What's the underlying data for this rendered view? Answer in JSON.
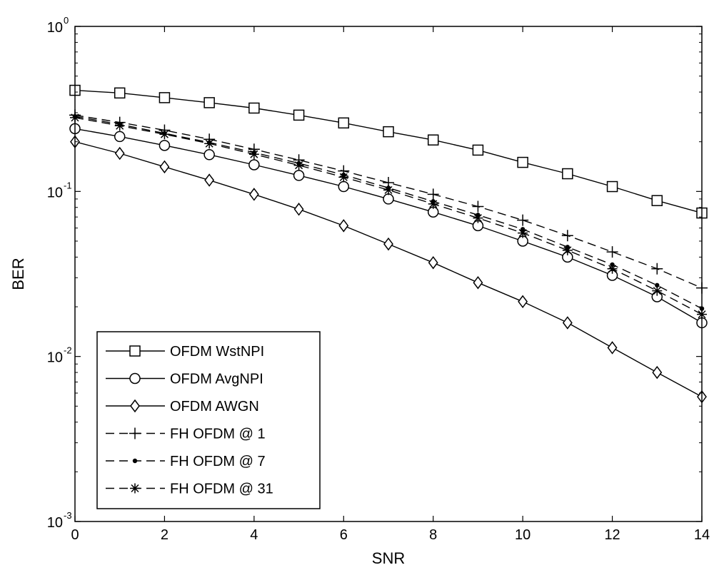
{
  "chart_data": {
    "type": "line",
    "title": "",
    "xlabel": "SNR",
    "ylabel": "BER",
    "xlim": [
      0,
      14
    ],
    "ylim": [
      0.001,
      1
    ],
    "y_scale": "log",
    "grid": false,
    "legend_position": "bottom-left",
    "x_ticks": [
      0,
      2,
      4,
      6,
      8,
      10,
      12,
      14
    ],
    "y_ticks": [
      {
        "value": 1,
        "base": "10",
        "exp": "0"
      },
      {
        "value": 0.1,
        "base": "10",
        "exp": "-1"
      },
      {
        "value": 0.01,
        "base": "10",
        "exp": "-2"
      },
      {
        "value": 0.001,
        "base": "10",
        "exp": "-3"
      }
    ],
    "x": [
      0,
      1,
      2,
      3,
      4,
      5,
      6,
      7,
      8,
      9,
      10,
      11,
      12,
      13,
      14
    ],
    "series": [
      {
        "name": "OFDM WstNPI",
        "line": "solid",
        "marker": "square",
        "values": [
          0.41,
          0.395,
          0.37,
          0.345,
          0.32,
          0.29,
          0.26,
          0.23,
          0.205,
          0.178,
          0.15,
          0.128,
          0.107,
          0.088,
          0.074
        ]
      },
      {
        "name": "OFDM AvgNPI",
        "line": "solid",
        "marker": "circle",
        "values": [
          0.24,
          0.215,
          0.19,
          0.167,
          0.145,
          0.125,
          0.107,
          0.09,
          0.075,
          0.062,
          0.05,
          0.04,
          0.031,
          0.023,
          0.016
        ]
      },
      {
        "name": "OFDM AWGN",
        "line": "solid",
        "marker": "diamond",
        "values": [
          0.2,
          0.17,
          0.141,
          0.117,
          0.096,
          0.078,
          0.062,
          0.048,
          0.037,
          0.028,
          0.0215,
          0.016,
          0.0113,
          0.008,
          0.0057
        ]
      },
      {
        "name": "FH OFDM @ 1",
        "line": "dashed",
        "marker": "plus",
        "values": [
          0.29,
          0.262,
          0.235,
          0.207,
          0.18,
          0.155,
          0.133,
          0.113,
          0.096,
          0.081,
          0.067,
          0.054,
          0.043,
          0.034,
          0.026
        ]
      },
      {
        "name": "FH OFDM @ 7",
        "line": "dashed",
        "marker": "dot",
        "values": [
          0.285,
          0.255,
          0.225,
          0.198,
          0.172,
          0.148,
          0.126,
          0.105,
          0.087,
          0.072,
          0.059,
          0.046,
          0.036,
          0.027,
          0.0195
        ]
      },
      {
        "name": "FH OFDM @ 31",
        "line": "dashed",
        "marker": "asterisk",
        "values": [
          0.28,
          0.25,
          0.222,
          0.195,
          0.168,
          0.144,
          0.122,
          0.102,
          0.084,
          0.069,
          0.056,
          0.044,
          0.034,
          0.025,
          0.018
        ]
      }
    ]
  }
}
